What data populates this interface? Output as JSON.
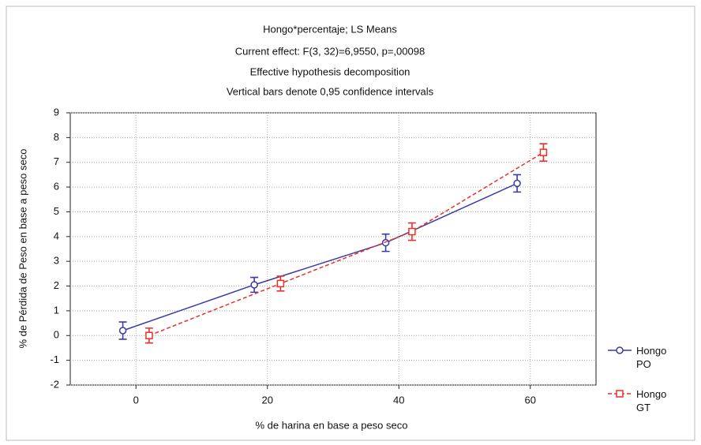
{
  "chart_data": {
    "type": "errorbar",
    "title": [
      "Hongo*percentaje; LS Means",
      "Current effect: F(3, 32)=6,9550, p=,00098",
      "Effective hypothesis decomposition",
      "Vertical bars denote 0,95 confidence intervals"
    ],
    "x_label": "% de harina en base a peso seco",
    "y_label": "% de Pérdida de Peso en base a peso seco",
    "x": [
      0,
      20,
      40,
      60
    ],
    "series": [
      {
        "name": "Hongo PO",
        "color": "#3a3aa8",
        "values": [
          0.2,
          2.05,
          3.75,
          6.15
        ],
        "errors": [
          0.35,
          0.3,
          0.35,
          0.35
        ]
      },
      {
        "name": "Hongo GT",
        "color": "#e8312a",
        "values": [
          0.0,
          2.1,
          4.2,
          7.4
        ],
        "errors": [
          0.3,
          0.3,
          0.35,
          0.35
        ]
      }
    ],
    "xlim": [
      -10,
      70
    ],
    "xticks": [
      0,
      20,
      40,
      60
    ],
    "ylim": [
      -2,
      9
    ],
    "yticks": [
      -2,
      -1,
      0,
      1,
      2,
      3,
      4,
      5,
      6,
      7,
      8,
      9
    ],
    "grid": true,
    "legend": "right"
  }
}
